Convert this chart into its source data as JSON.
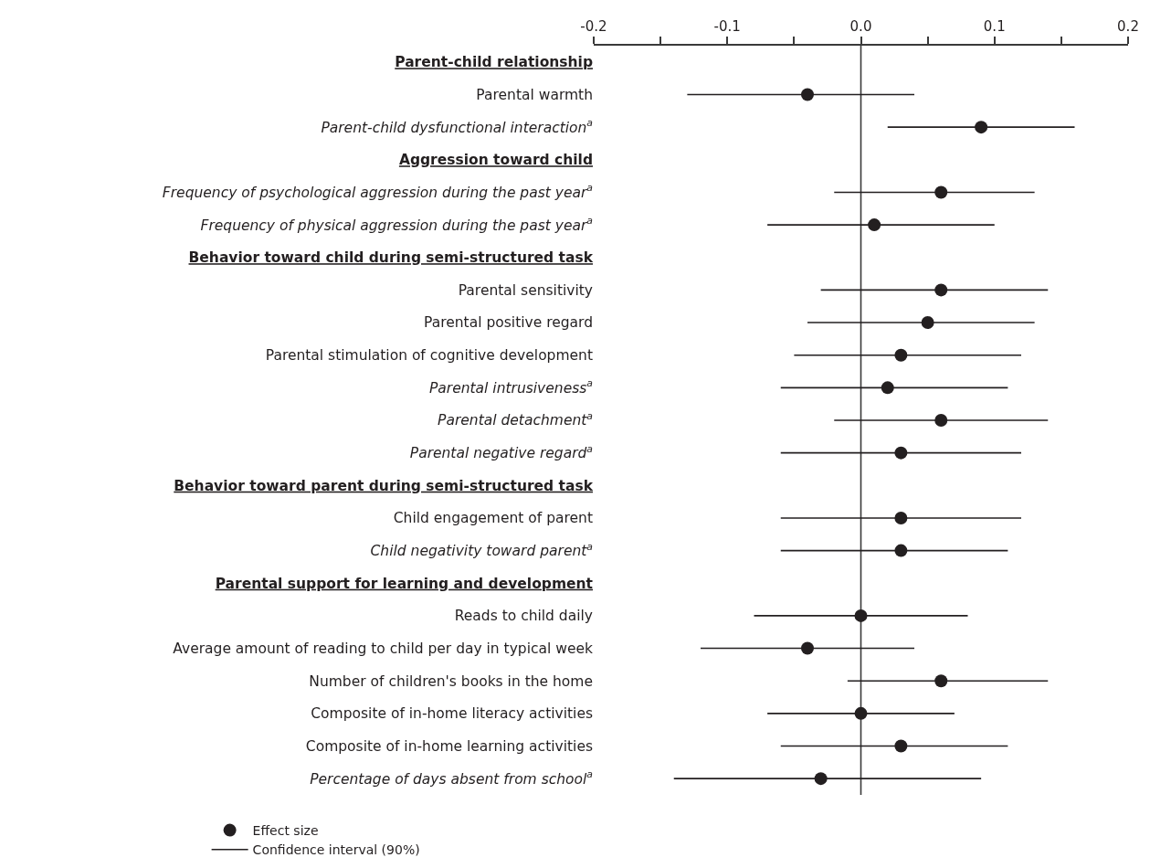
{
  "chart_data": {
    "type": "scatter",
    "orientation": "horizontal",
    "categories": [
      "Parent-child relationship",
      "Parental warmth",
      "Parent-child dysfunctional interaction$^{a}$",
      "Aggression toward child",
      "Frequency of psychological aggression during the past year$^{a}$",
      "Frequency of physical aggression during the past year$^{a}$",
      "Behavior toward child during semi-structured task",
      "Parental sensitivity",
      "Parental positive regard",
      "Parental stimulation of cognitive development",
      "Parental intrusiveness$^{a}$",
      "Parental detachment$^{a}$",
      "Parental negative regard$^{a}$",
      "Behavior toward parent during semi-structured task",
      "Child engagement of parent",
      "Child negativity toward parent$^{a}$",
      "Parental support for learning and development",
      "Reads to child daily",
      "Average amount of reading to child per day in typical week",
      "Number of children's books in the home",
      "Composite of in-home literacy activities",
      "Composite of in-home learning activities",
      "Percentage of days absent from school$^{a}$"
    ],
    "series": [
      {
        "name": "Effect size",
        "type": "scatter",
        "color": "#231f20",
        "marker": "circle",
        "values": [
          null,
          -0.04,
          0.09,
          null,
          0.06,
          0.01,
          null,
          0.06,
          0.05,
          0.03,
          0.02,
          0.06,
          0.03,
          null,
          0.03,
          0.03,
          null,
          0.0,
          -0.04,
          0.06,
          0.0,
          0.03,
          -0.03
        ],
        "errors": [
          null,
          [
            -0.13,
            0.04
          ],
          [
            0.02,
            0.16
          ],
          null,
          [
            -0.02,
            0.13
          ],
          [
            -0.07,
            0.1
          ],
          null,
          [
            -0.03,
            0.14
          ],
          [
            -0.04,
            0.13
          ],
          [
            -0.05,
            0.12
          ],
          [
            -0.06,
            0.11
          ],
          [
            -0.02,
            0.14
          ],
          [
            -0.06,
            0.12
          ],
          null,
          [
            -0.06,
            0.12
          ],
          [
            -0.06,
            0.11
          ],
          null,
          [
            -0.08,
            0.08
          ],
          [
            -0.12,
            0.04
          ],
          [
            -0.01,
            0.14
          ],
          [
            -0.07,
            0.07
          ],
          [
            -0.06,
            0.11
          ],
          [
            -0.14,
            0.09
          ]
        ]
      }
    ],
    "annotations": [
      "Confidence interval (90%)"
    ],
    "xlim": [
      -0.2,
      0.2
    ],
    "xticks": [
      -0.2,
      {
        "value": -0.15,
        "label": null
      },
      -0.1,
      {
        "value": -0.05,
        "label": null
      },
      {
        "value": 0,
        "label": "0.0"
      },
      {
        "value": 0.05,
        "label": null
      },
      0.1,
      {
        "value": 0.15,
        "label": null
      },
      0.2
    ],
    "ref_lines": [
      {
        "axis": "x",
        "value": 0,
        "color": "#3a3a3a"
      }
    ],
    "grid": false,
    "legend": "bottom"
  }
}
